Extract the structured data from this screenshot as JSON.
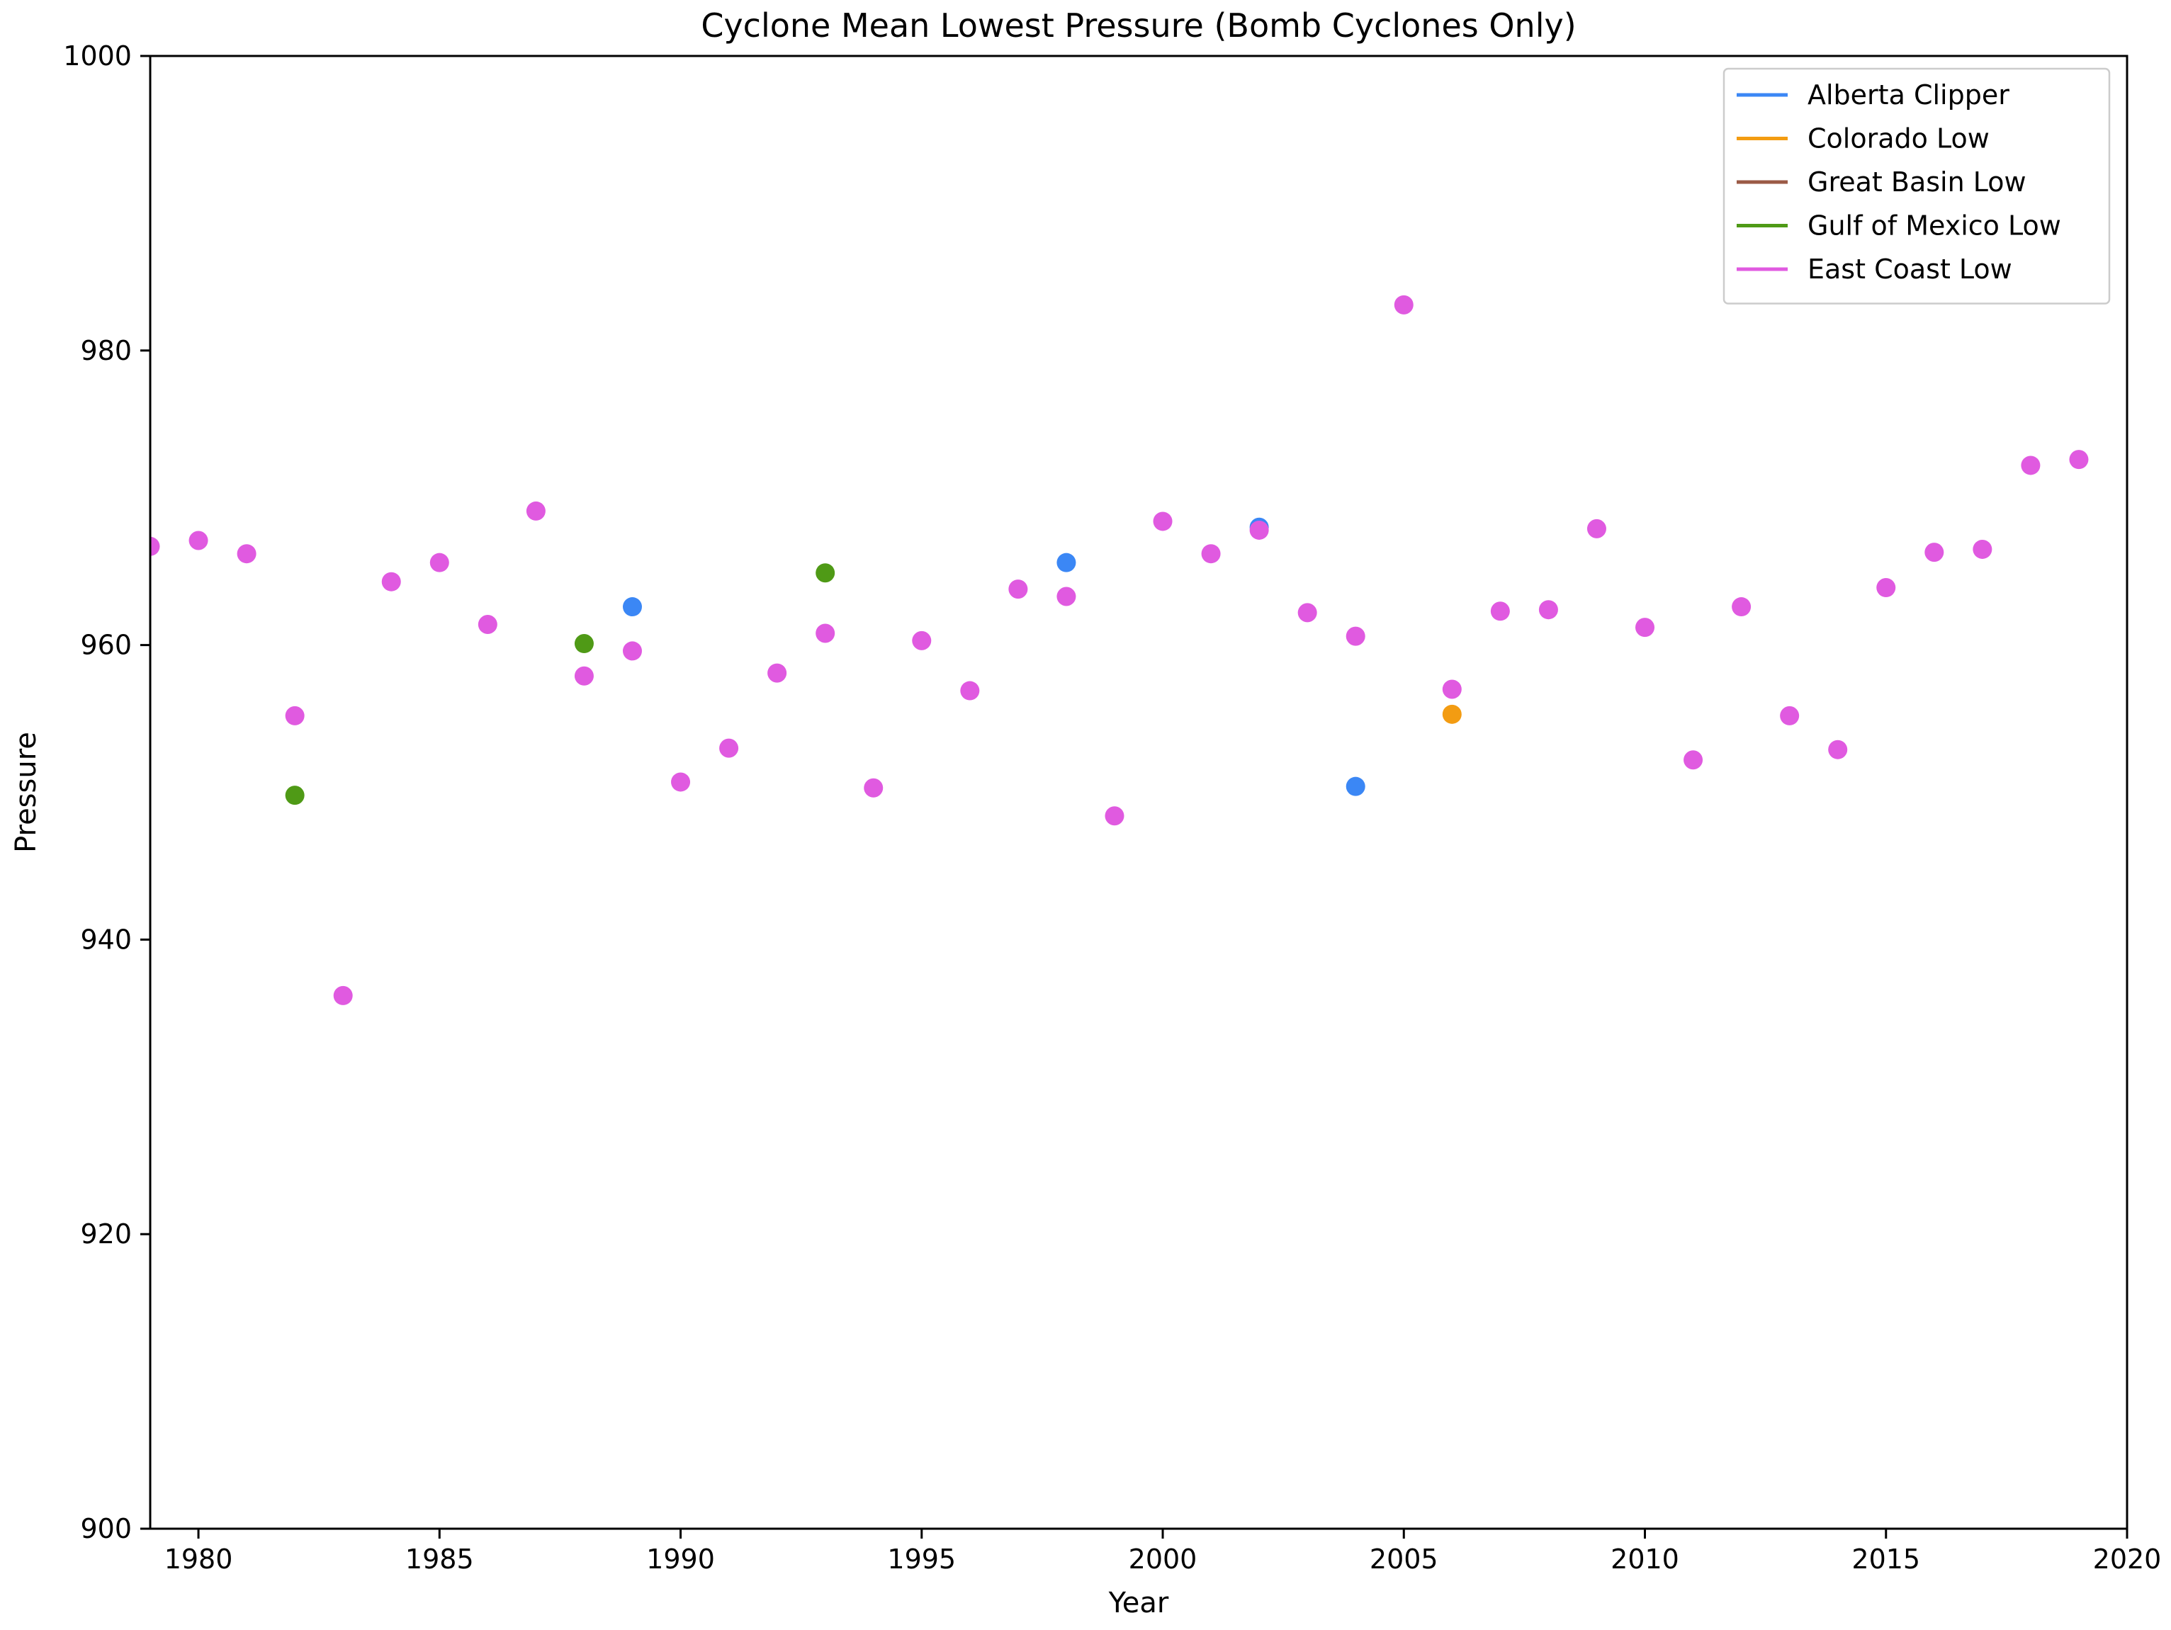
{
  "chart_data": {
    "type": "scatter",
    "title": "Cyclone Mean Lowest Pressure (Bomb Cyclones Only)",
    "xlabel": "Year",
    "ylabel": "Pressure",
    "xlim": [
      1979,
      2020
    ],
    "ylim": [
      900,
      1000
    ],
    "xticks": [
      1980,
      1985,
      1990,
      1995,
      2000,
      2005,
      2010,
      2015,
      2020
    ],
    "yticks": [
      900,
      920,
      940,
      960,
      980,
      1000
    ],
    "grid": false,
    "legend_position": "top-right",
    "series": [
      {
        "name": "Alberta Clipper",
        "color": "#3b87f5",
        "points": [
          [
            1989,
            962.6
          ],
          [
            1998,
            965.6
          ],
          [
            2002,
            968.0
          ],
          [
            2004,
            950.4
          ]
        ]
      },
      {
        "name": "Colorado Low",
        "color": "#f39c12",
        "points": [
          [
            2006,
            955.3
          ]
        ]
      },
      {
        "name": "Great Basin Low",
        "color": "#9b5a46",
        "points": []
      },
      {
        "name": "Gulf of Mexico Low",
        "color": "#4f9a16",
        "points": [
          [
            1982,
            949.8
          ],
          [
            1988,
            960.1
          ],
          [
            1993,
            964.9
          ]
        ]
      },
      {
        "name": "East Coast Low",
        "color": "#e05ae0",
        "points": [
          [
            1979,
            966.7
          ],
          [
            1980,
            967.1
          ],
          [
            1981,
            966.2
          ],
          [
            1982,
            955.2
          ],
          [
            1983,
            936.2
          ],
          [
            1984,
            964.3
          ],
          [
            1985,
            965.6
          ],
          [
            1986,
            961.4
          ],
          [
            1987,
            969.1
          ],
          [
            1988,
            957.9
          ],
          [
            1989,
            959.6
          ],
          [
            1990,
            950.7
          ],
          [
            1991,
            953.0
          ],
          [
            1992,
            958.1
          ],
          [
            1993,
            960.8
          ],
          [
            1994,
            950.3
          ],
          [
            1995,
            960.3
          ],
          [
            1996,
            956.9
          ],
          [
            1997,
            963.8
          ],
          [
            1998,
            963.3
          ],
          [
            1999,
            948.4
          ],
          [
            2000,
            968.4
          ],
          [
            2001,
            966.2
          ],
          [
            2002,
            967.8
          ],
          [
            2003,
            962.2
          ],
          [
            2004,
            960.6
          ],
          [
            2005,
            983.1
          ],
          [
            2006,
            957.0
          ],
          [
            2007,
            962.3
          ],
          [
            2008,
            962.4
          ],
          [
            2009,
            967.9
          ],
          [
            2010,
            961.2
          ],
          [
            2011,
            952.2
          ],
          [
            2012,
            962.6
          ],
          [
            2013,
            955.2
          ],
          [
            2014,
            952.9
          ],
          [
            2015,
            963.9
          ],
          [
            2016,
            966.3
          ],
          [
            2017,
            966.5
          ],
          [
            2018,
            972.2
          ],
          [
            2019,
            972.6
          ]
        ]
      }
    ]
  }
}
